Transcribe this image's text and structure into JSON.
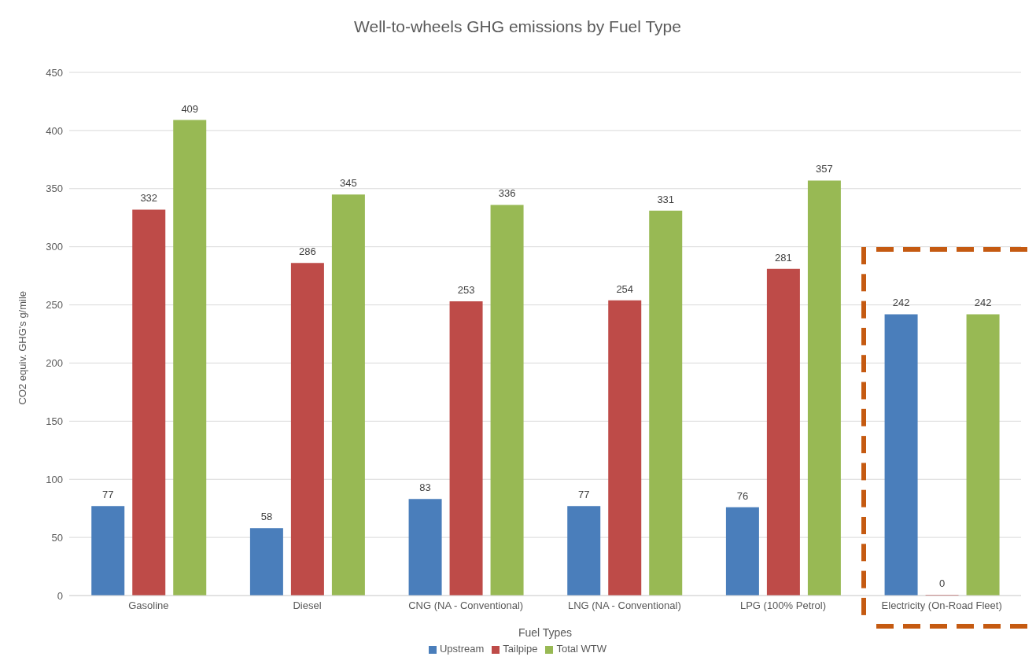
{
  "chart_data": {
    "type": "bar",
    "title": "Well-to-wheels GHG emissions by Fuel Type",
    "xlabel": "Fuel Types",
    "ylabel": "CO2 equiv. GHG's g/mile",
    "categories": [
      "Gasoline",
      "Diesel",
      "CNG (NA - Conventional)",
      "LNG (NA - Conventional)",
      "LPG (100% Petrol)",
      "Electricity (On-Road Fleet)"
    ],
    "series": [
      {
        "name": "Upstream",
        "color": "#4a7ebb",
        "values": [
          77,
          58,
          83,
          77,
          76,
          242
        ]
      },
      {
        "name": "Tailpipe",
        "color": "#be4b48",
        "values": [
          332,
          286,
          253,
          254,
          281,
          0
        ]
      },
      {
        "name": "Total WTW",
        "color": "#98b954",
        "values": [
          409,
          345,
          336,
          331,
          357,
          242
        ]
      }
    ],
    "ylim": [
      0,
      450
    ],
    "yticks": [
      0,
      50,
      100,
      150,
      200,
      250,
      300,
      350,
      400,
      450
    ],
    "grid": "y",
    "legend": "bottom",
    "data_labels": true
  }
}
